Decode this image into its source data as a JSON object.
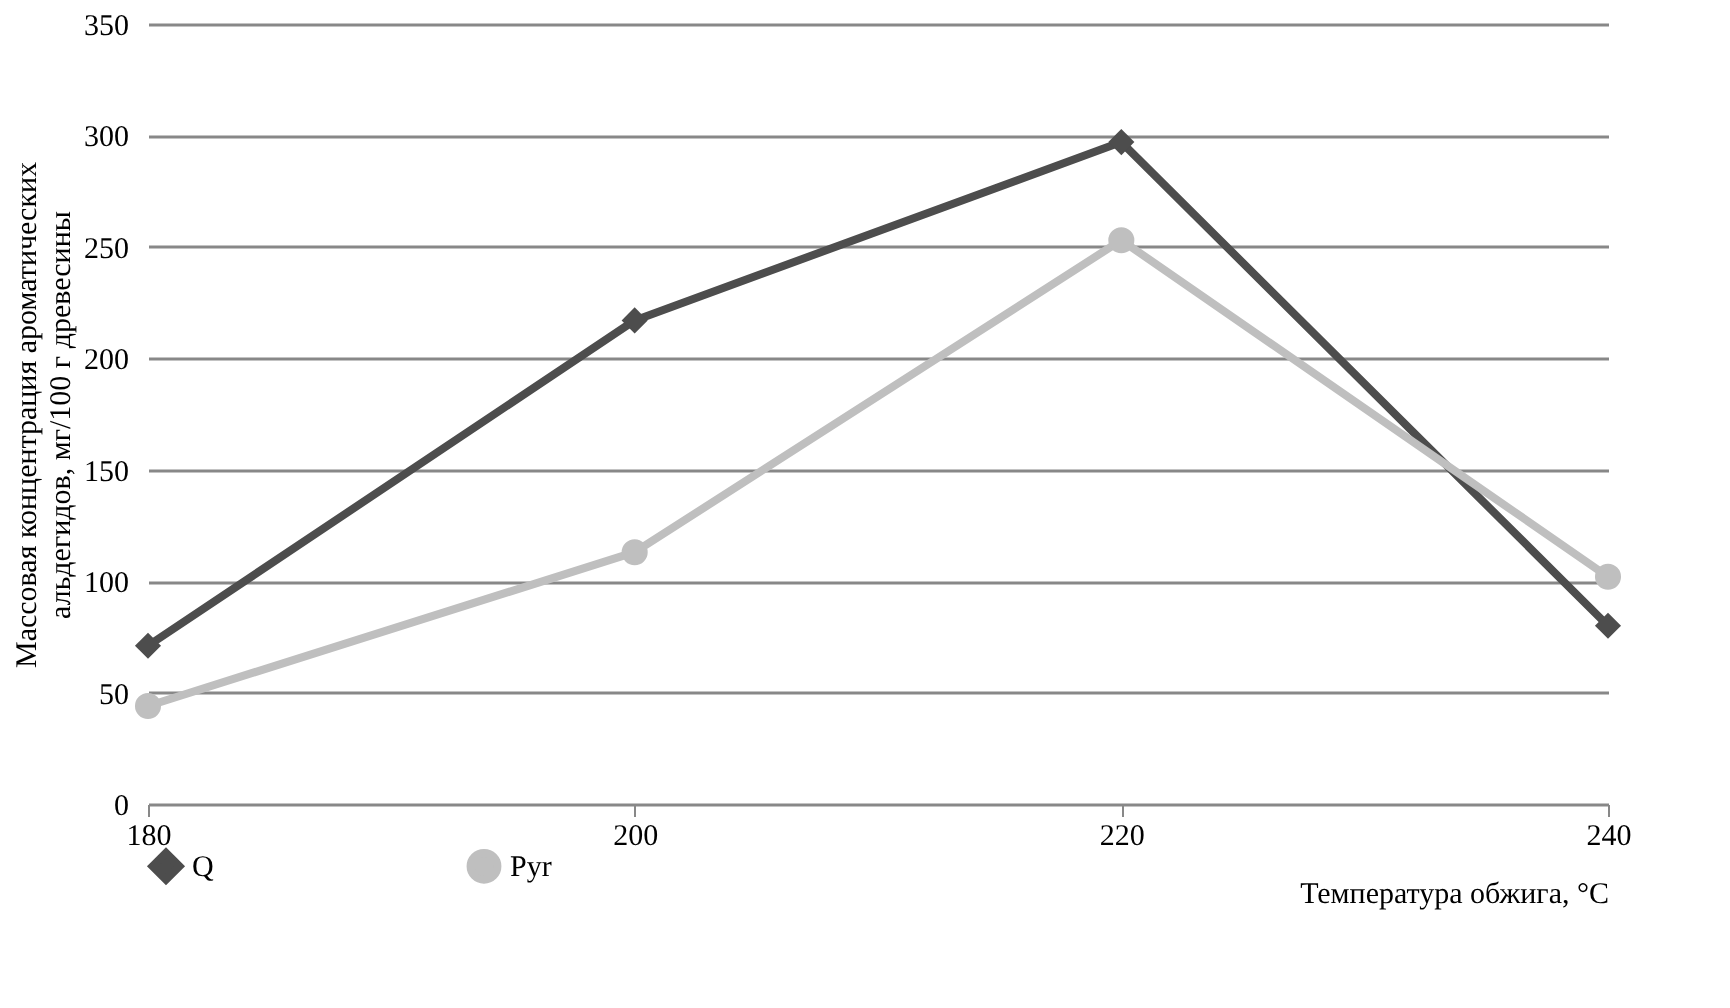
{
  "chart_data": {
    "type": "line",
    "xlabel": "Температура обжига, °C",
    "ylabel": "Массовая концентрация ароматических альдегидов, мг/100 г древесины",
    "x": [
      180,
      200,
      220,
      240
    ],
    "xlim": [
      180,
      240
    ],
    "xticks": [
      180,
      200,
      220,
      240
    ],
    "ylim": [
      0,
      350
    ],
    "yticks": [
      0,
      50,
      100,
      150,
      200,
      250,
      300,
      350
    ],
    "grid": "y",
    "legend": "bottom",
    "series": [
      {
        "name": "Q",
        "color": "#4d4d4d",
        "marker": "diamond",
        "values": [
          71,
          217,
          297,
          80
        ]
      },
      {
        "name": "Pyr",
        "color": "#bfbfbf",
        "marker": "circle",
        "values": [
          44,
          113,
          253,
          102
        ]
      }
    ]
  }
}
